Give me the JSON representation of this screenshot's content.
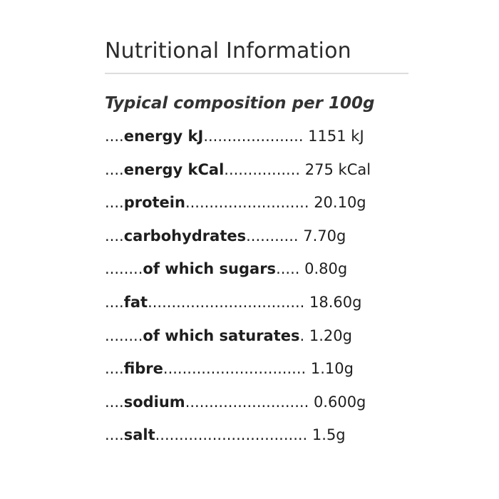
{
  "heading": "Nutritional Information",
  "subtitle": "Typical composition per 100g",
  "rows": [
    {
      "lead": "....",
      "label": "energy kJ",
      "trail": ".....................",
      "value": " 1151 kJ"
    },
    {
      "lead": "....",
      "label": "energy kCal",
      "trail": "................",
      "value": " 275 kCal"
    },
    {
      "lead": "....",
      "label": "protein",
      "trail": "..........................",
      "value": " 20.10g"
    },
    {
      "lead": "....",
      "label": "carbohydrates",
      "trail": "...........",
      "value": " 7.70g"
    },
    {
      "lead": "........",
      "label": "of which sugars",
      "trail": ".....",
      "value": " 0.80g"
    },
    {
      "lead": "....",
      "label": "fat",
      "trail": ".................................",
      "value": " 18.60g"
    },
    {
      "lead": "........",
      "label": "of which saturates",
      "trail": ".",
      "value": " 1.20g"
    },
    {
      "lead": "....",
      "label": "fibre",
      "trail": "..............................",
      "value": " 1.10g"
    },
    {
      "lead": "....",
      "label": "sodium",
      "trail": "..........................",
      "value": " 0.600g"
    },
    {
      "lead": "....",
      "label": "salt",
      "trail": "................................",
      "value": " 1.5g"
    }
  ]
}
